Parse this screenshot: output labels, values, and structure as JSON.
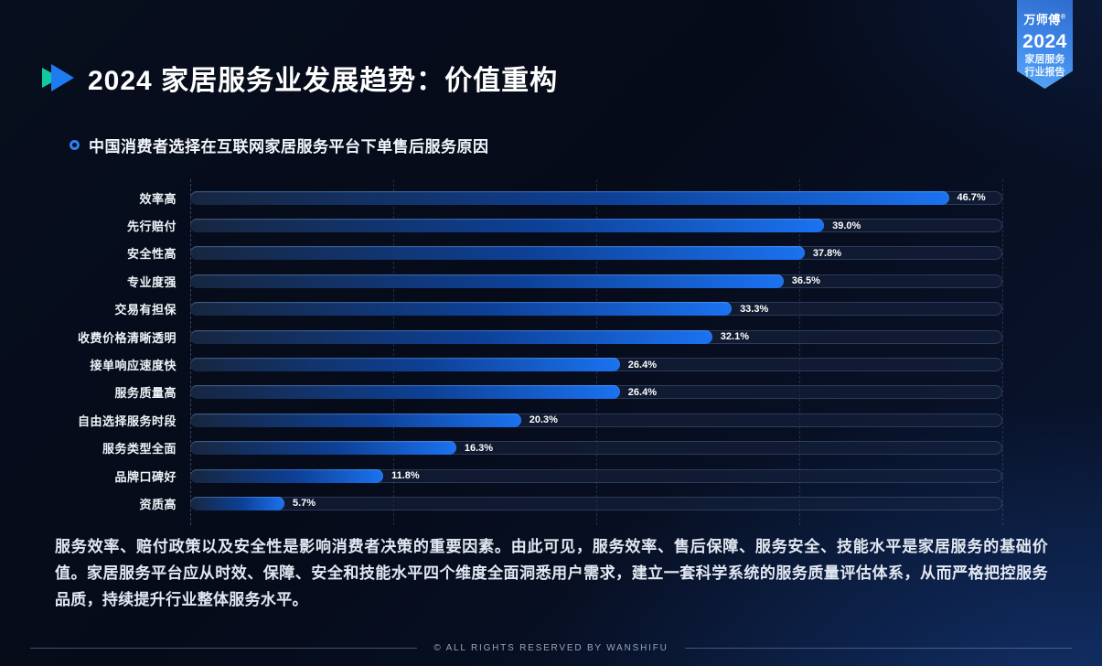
{
  "slide": {
    "title": "2024 家居服务业发展趋势：价值重构",
    "summary": "服务效率、赔付政策以及安全性是影响消费者决策的重要因素。由此可见，服务效率、售后保障、服务安全、技能水平是家居服务的基础价值。家居服务平台应从时效、保障、安全和技能水平四个维度全面洞悉用户需求，建立一套科学系统的服务质量评估体系，从而严格把控服务品质，持续提升行业整体服务水平。",
    "footer": "© ALL RIGHTS RESERVED BY WANSHIFU"
  },
  "badge": {
    "brand": "万师傅",
    "trademark": "®",
    "year": "2024",
    "line1": "家居服务",
    "line2": "行业报告"
  },
  "chart_data": {
    "type": "bar",
    "orientation": "horizontal",
    "title": "中国消费者选择在互联网家居服务平台下单售后服务原因",
    "categories": [
      "效率高",
      "先行赔付",
      "安全性高",
      "专业度强",
      "交易有担保",
      "收费价格清晰透明",
      "接单响应速度快",
      "服务质量高",
      "自由选择服务时段",
      "服务类型全面",
      "品牌口碑好",
      "资质高"
    ],
    "values": [
      46.7,
      39.0,
      37.8,
      36.5,
      33.3,
      32.1,
      26.4,
      26.4,
      20.3,
      16.3,
      11.8,
      5.7
    ],
    "value_labels": [
      "46.7%",
      "39.0%",
      "37.8%",
      "36.5%",
      "33.3%",
      "32.1%",
      "26.4%",
      "26.4%",
      "20.3%",
      "16.3%",
      "11.8%",
      "5.7%"
    ],
    "xlim": [
      0,
      50
    ],
    "gridline_step": 12.5,
    "grid": "dashed-vertical",
    "legend": "none",
    "bar_gradient": [
      "#17263f",
      "#0d4096",
      "#1b72f0"
    ],
    "track_color": "#172540"
  },
  "colors": {
    "accent_blue": "#1f7cf0",
    "accent_teal": "#12c9a0",
    "background_dark": "#060b19",
    "background_glow": "#1c52af",
    "text_primary": "#ffffff",
    "text_body": "#e2e8f2",
    "footer_text": "#93a5bd"
  }
}
